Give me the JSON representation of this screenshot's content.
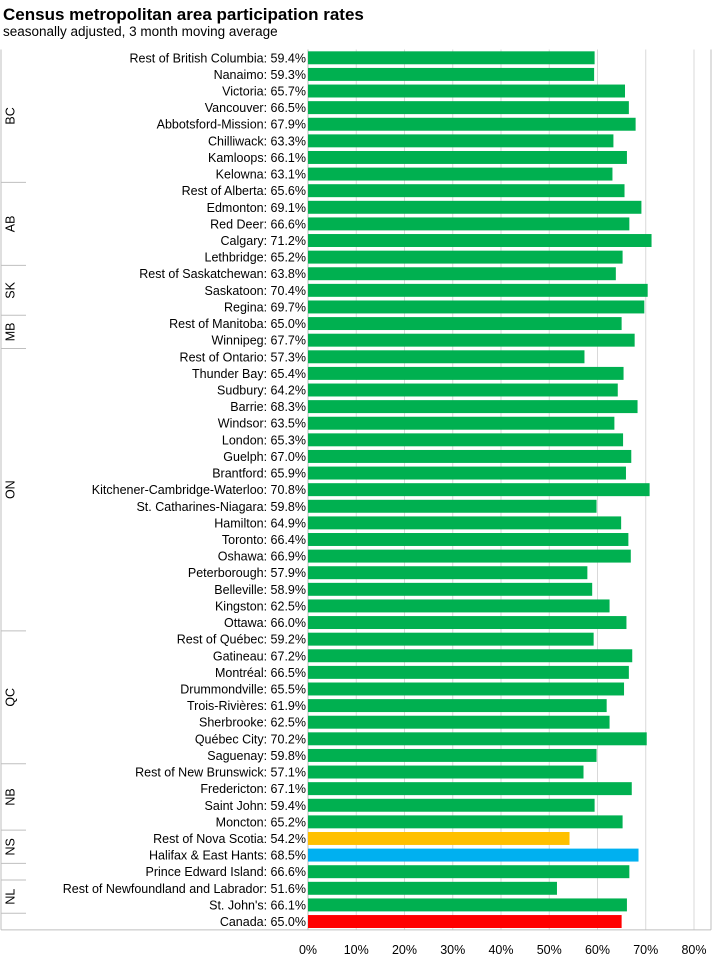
{
  "title": "Census metropolitan area participation rates",
  "subtitle": "seasonally adjusted, 3 month moving average",
  "chart_data": {
    "type": "bar",
    "orientation": "horizontal",
    "xlim": [
      0,
      80
    ],
    "x_ticks": [
      "0%",
      "10%",
      "20%",
      "30%",
      "40%",
      "50%",
      "60%",
      "70%",
      "80%"
    ],
    "grid": "vertical",
    "colors": {
      "default": "#00b050",
      "nova_scotia": "#ffc000",
      "halifax": "#00b0f0",
      "canada": "#ff0000"
    },
    "groups": [
      {
        "name": "BC",
        "items": [
          {
            "label": "Rest of British Columbia: 59.4%",
            "value": 59.4
          },
          {
            "label": "Nanaimo: 59.3%",
            "value": 59.3
          },
          {
            "label": "Victoria: 65.7%",
            "value": 65.7
          },
          {
            "label": "Vancouver: 66.5%",
            "value": 66.5
          },
          {
            "label": "Abbotsford-Mission: 67.9%",
            "value": 67.9
          },
          {
            "label": "Chilliwack: 63.3%",
            "value": 63.3
          },
          {
            "label": "Kamloops: 66.1%",
            "value": 66.1
          },
          {
            "label": "Kelowna: 63.1%",
            "value": 63.1
          }
        ]
      },
      {
        "name": "AB",
        "items": [
          {
            "label": "Rest of Alberta: 65.6%",
            "value": 65.6
          },
          {
            "label": "Edmonton: 69.1%",
            "value": 69.1
          },
          {
            "label": "Red Deer: 66.6%",
            "value": 66.6
          },
          {
            "label": "Calgary: 71.2%",
            "value": 71.2
          },
          {
            "label": "Lethbridge: 65.2%",
            "value": 65.2
          }
        ]
      },
      {
        "name": "SK",
        "items": [
          {
            "label": "Rest of Saskatchewan: 63.8%",
            "value": 63.8
          },
          {
            "label": "Saskatoon: 70.4%",
            "value": 70.4
          },
          {
            "label": "Regina: 69.7%",
            "value": 69.7
          }
        ]
      },
      {
        "name": "MB",
        "items": [
          {
            "label": "Rest of Manitoba: 65.0%",
            "value": 65.0
          },
          {
            "label": "Winnipeg: 67.7%",
            "value": 67.7
          }
        ]
      },
      {
        "name": "ON",
        "items": [
          {
            "label": "Rest of Ontario: 57.3%",
            "value": 57.3
          },
          {
            "label": "Thunder Bay: 65.4%",
            "value": 65.4
          },
          {
            "label": "Sudbury: 64.2%",
            "value": 64.2
          },
          {
            "label": "Barrie: 68.3%",
            "value": 68.3
          },
          {
            "label": "Windsor: 63.5%",
            "value": 63.5
          },
          {
            "label": "London: 65.3%",
            "value": 65.3
          },
          {
            "label": "Guelph: 67.0%",
            "value": 67.0
          },
          {
            "label": "Brantford: 65.9%",
            "value": 65.9
          },
          {
            "label": "Kitchener-Cambridge-Waterloo: 70.8%",
            "value": 70.8
          },
          {
            "label": "St. Catharines-Niagara: 59.8%",
            "value": 59.8
          },
          {
            "label": "Hamilton: 64.9%",
            "value": 64.9
          },
          {
            "label": "Toronto: 66.4%",
            "value": 66.4
          },
          {
            "label": "Oshawa: 66.9%",
            "value": 66.9
          },
          {
            "label": "Peterborough: 57.9%",
            "value": 57.9
          },
          {
            "label": "Belleville: 58.9%",
            "value": 58.9
          },
          {
            "label": "Kingston: 62.5%",
            "value": 62.5
          },
          {
            "label": "Ottawa: 66.0%",
            "value": 66.0
          }
        ]
      },
      {
        "name": "QC",
        "items": [
          {
            "label": "Rest of Québec: 59.2%",
            "value": 59.2
          },
          {
            "label": "Gatineau: 67.2%",
            "value": 67.2
          },
          {
            "label": "Montréal: 66.5%",
            "value": 66.5
          },
          {
            "label": "Drummondville: 65.5%",
            "value": 65.5
          },
          {
            "label": "Trois-Rivières: 61.9%",
            "value": 61.9
          },
          {
            "label": "Sherbrooke: 62.5%",
            "value": 62.5
          },
          {
            "label": "Québec City: 70.2%",
            "value": 70.2
          },
          {
            "label": "Saguenay: 59.8%",
            "value": 59.8
          }
        ]
      },
      {
        "name": "NB",
        "items": [
          {
            "label": "Rest of New Brunswick: 57.1%",
            "value": 57.1
          },
          {
            "label": "Fredericton: 67.1%",
            "value": 67.1
          },
          {
            "label": "Saint John: 59.4%",
            "value": 59.4
          },
          {
            "label": "Moncton: 65.2%",
            "value": 65.2
          }
        ]
      },
      {
        "name": "NS",
        "items": [
          {
            "label": "Rest of Nova Scotia: 54.2%",
            "value": 54.2,
            "color_key": "nova_scotia"
          },
          {
            "label": "Halifax & East Hants: 68.5%",
            "value": 68.5,
            "color_key": "halifax"
          }
        ]
      },
      {
        "name": "",
        "items": [
          {
            "label": "Prince Edward Island: 66.6%",
            "value": 66.6
          }
        ]
      },
      {
        "name": "NL",
        "items": [
          {
            "label": "Rest of Newfoundland and Labrador: 51.6%",
            "value": 51.6
          },
          {
            "label": "St. John's: 66.1%",
            "value": 66.1
          }
        ]
      },
      {
        "name": "",
        "items": [
          {
            "label": "Canada: 65.0%",
            "value": 65.0,
            "color_key": "canada"
          }
        ]
      }
    ]
  }
}
